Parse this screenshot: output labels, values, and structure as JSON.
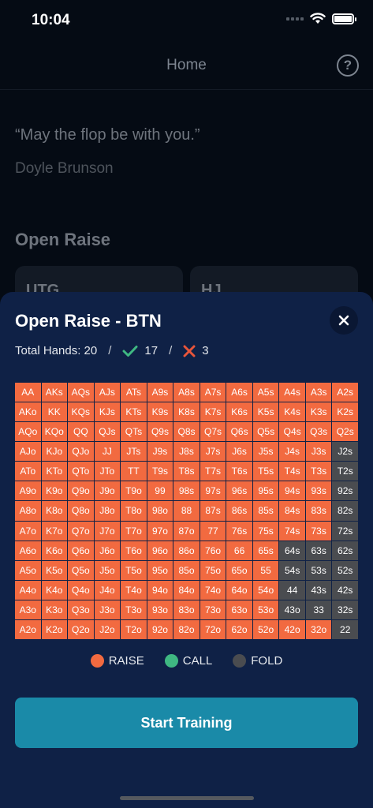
{
  "status_bar": {
    "time": "10:04"
  },
  "nav": {
    "title": "Home",
    "help_label": "?"
  },
  "background": {
    "quote": "“May the flop be with you.”",
    "author": "Doyle Brunson",
    "section_title": "Open Raise",
    "cards": [
      "UTG",
      "HJ"
    ]
  },
  "sheet": {
    "title": "Open Raise - BTN",
    "stats": {
      "total_label": "Total Hands: 20",
      "separator": "/",
      "correct": "17",
      "wrong": "3"
    },
    "legend": [
      {
        "label": "RAISE",
        "color": "#f26a40"
      },
      {
        "label": "CALL",
        "color": "#3fb882"
      },
      {
        "label": "FOLD",
        "color": "#4a4c50"
      }
    ],
    "start_button": "Start Training",
    "ranks": [
      "A",
      "K",
      "Q",
      "J",
      "T",
      "9",
      "8",
      "7",
      "6",
      "5",
      "4",
      "3",
      "2"
    ],
    "raise_count_per_row": [
      13,
      13,
      13,
      12,
      12,
      12,
      12,
      12,
      10,
      10,
      10,
      10,
      12
    ]
  }
}
